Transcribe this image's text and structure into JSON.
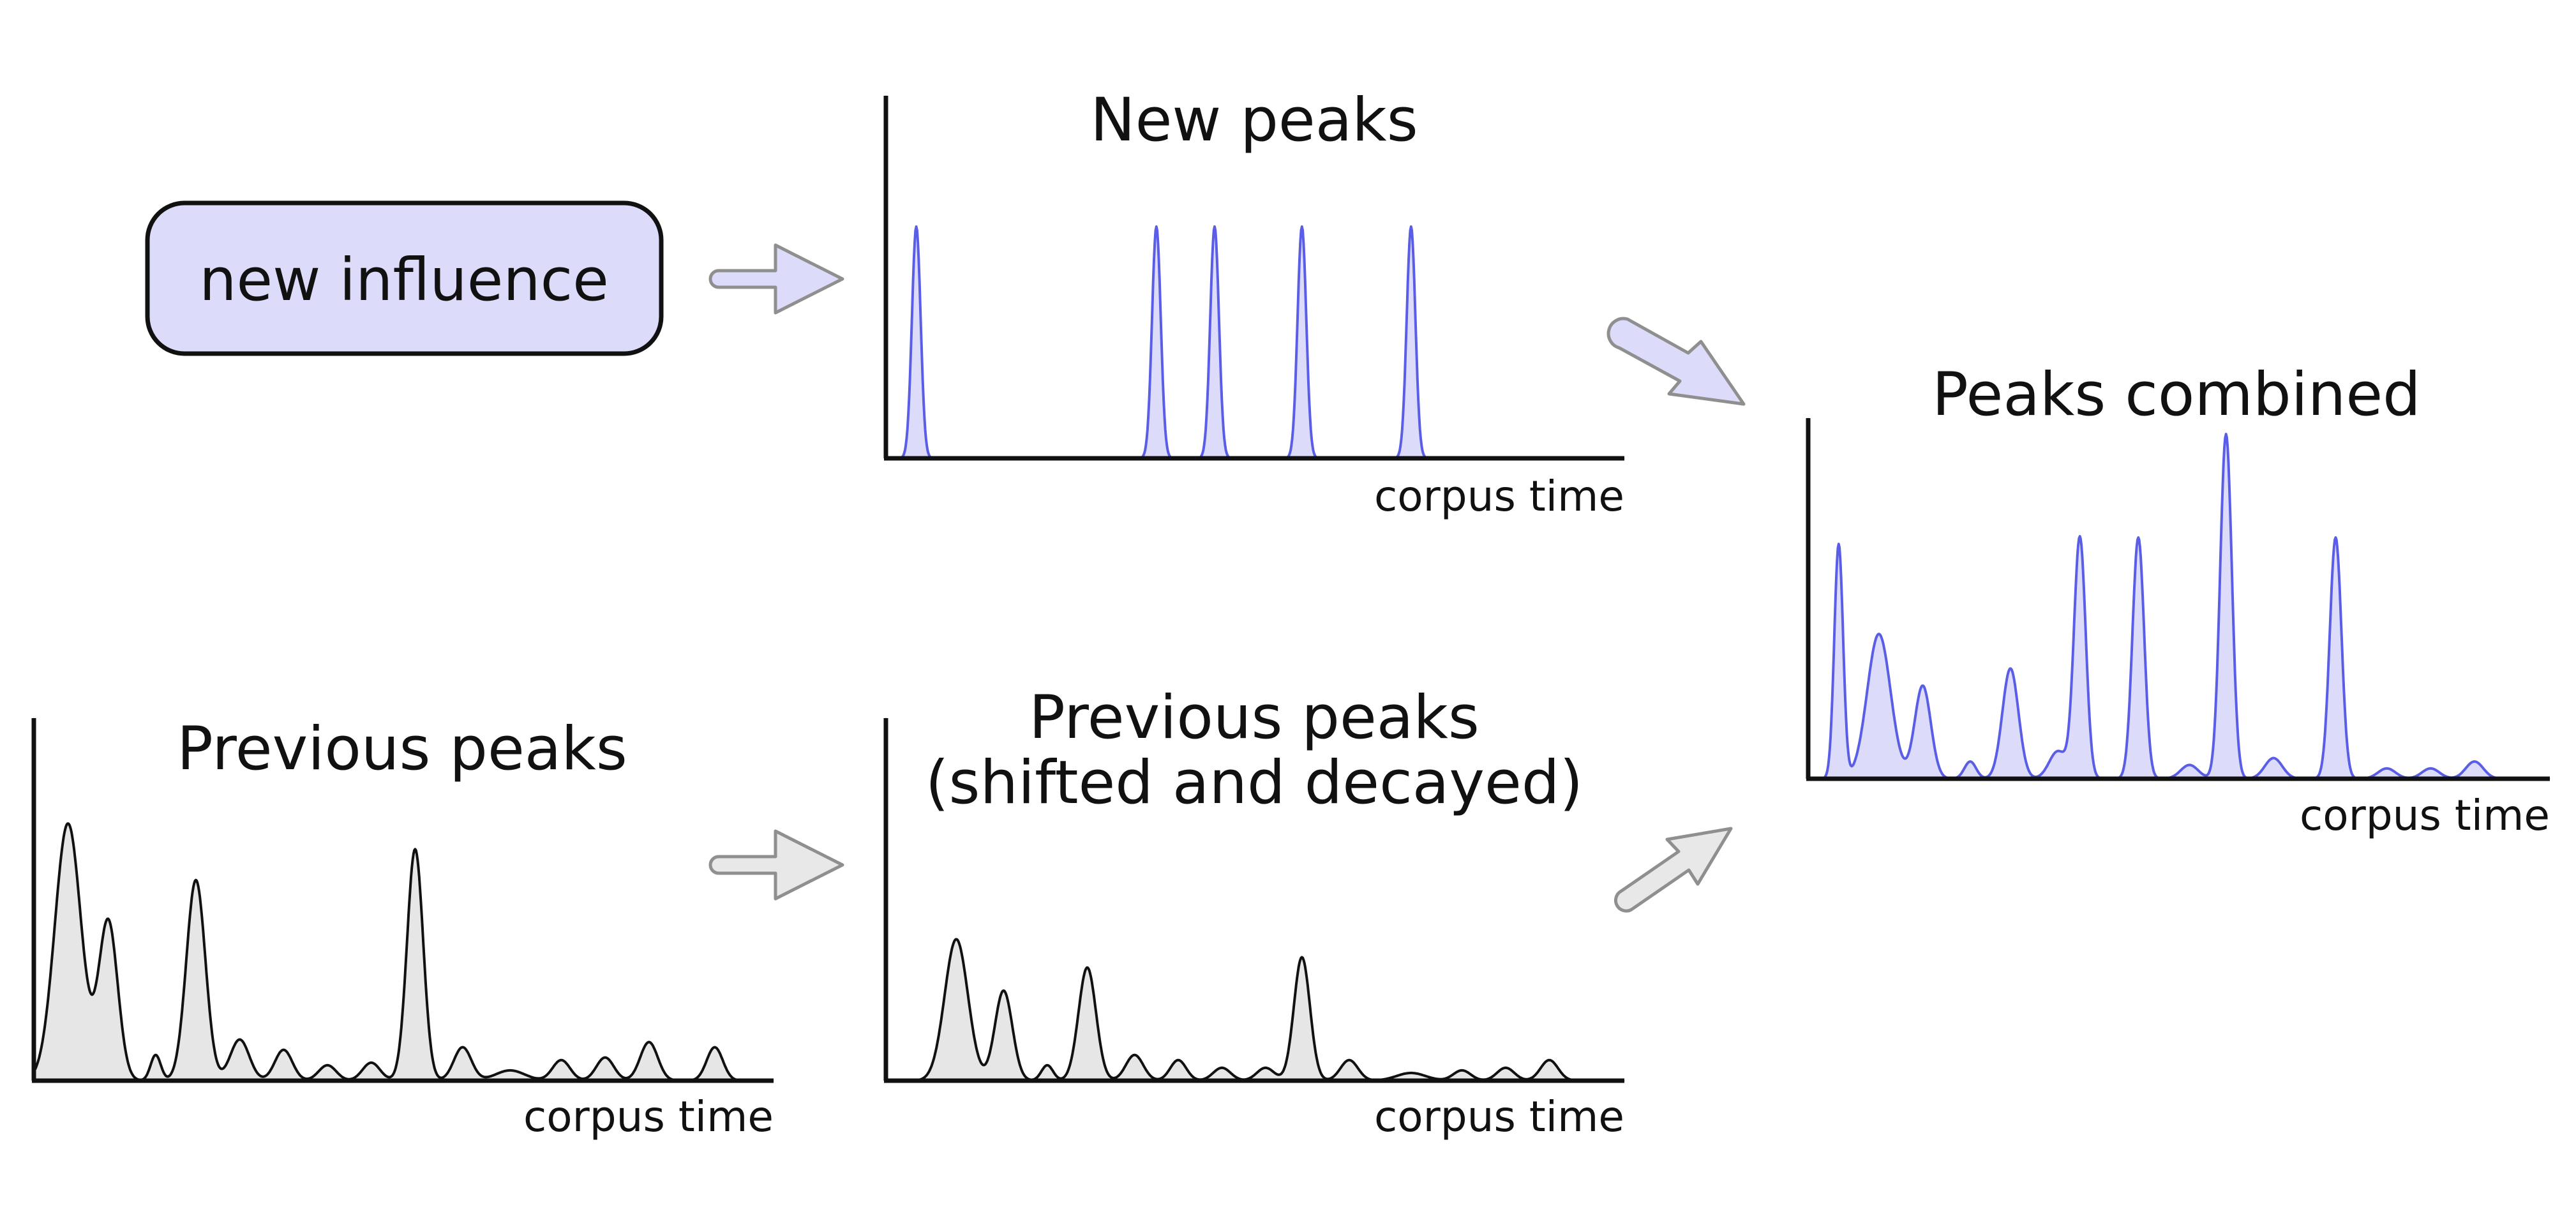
{
  "colors": {
    "blue_stroke": "#5a5ee6",
    "blue_fill": "#dcdcfa",
    "gray_stroke": "#111111",
    "gray_fill": "#e6e6e6",
    "arrow_gray_fill": "#e8e8e8",
    "arrow_blue_fill": "#dcdcfa",
    "arrow_stroke": "#8f8f8f"
  },
  "influence_box": {
    "label": "new influence"
  },
  "panels": {
    "new_peaks": {
      "title": "New peaks",
      "x_label": "corpus time"
    },
    "previous_peaks": {
      "title": "Previous peaks",
      "x_label": "corpus time"
    },
    "shifted": {
      "title_line1": "Previous peaks",
      "title_line2": "(shifted and decayed)",
      "x_label": "corpus time"
    },
    "combined": {
      "title": "Peaks combined",
      "x_label": "corpus time"
    }
  },
  "chart_data": [
    {
      "type": "area",
      "title": "New peaks",
      "xlabel": "corpus time",
      "x_range": [
        0,
        1
      ],
      "y_range": [
        0,
        1
      ],
      "peaks": [
        {
          "x": 0.04,
          "height": 1.0,
          "width": 0.006
        },
        {
          "x": 0.37,
          "height": 1.0,
          "width": 0.006
        },
        {
          "x": 0.45,
          "height": 1.0,
          "width": 0.006
        },
        {
          "x": 0.57,
          "height": 1.0,
          "width": 0.006
        },
        {
          "x": 0.72,
          "height": 1.0,
          "width": 0.006
        }
      ]
    },
    {
      "type": "area",
      "title": "Previous peaks",
      "xlabel": "corpus time",
      "x_range": [
        0,
        1
      ],
      "y_range": [
        0,
        1
      ],
      "peaks": [
        {
          "x": 0.045,
          "height": 1.0,
          "width": 0.018
        },
        {
          "x": 0.1,
          "height": 0.62,
          "width": 0.013
        },
        {
          "x": 0.165,
          "height": 0.1,
          "width": 0.007
        },
        {
          "x": 0.22,
          "height": 0.78,
          "width": 0.013
        },
        {
          "x": 0.28,
          "height": 0.16,
          "width": 0.013
        },
        {
          "x": 0.34,
          "height": 0.12,
          "width": 0.012
        },
        {
          "x": 0.4,
          "height": 0.06,
          "width": 0.012
        },
        {
          "x": 0.46,
          "height": 0.07,
          "width": 0.012
        },
        {
          "x": 0.52,
          "height": 0.9,
          "width": 0.011
        },
        {
          "x": 0.585,
          "height": 0.13,
          "width": 0.012
        },
        {
          "x": 0.65,
          "height": 0.04,
          "width": 0.02
        },
        {
          "x": 0.72,
          "height": 0.08,
          "width": 0.012
        },
        {
          "x": 0.78,
          "height": 0.09,
          "width": 0.012
        },
        {
          "x": 0.84,
          "height": 0.15,
          "width": 0.012
        },
        {
          "x": 0.93,
          "height": 0.13,
          "width": 0.011
        }
      ]
    },
    {
      "type": "area",
      "title": "Previous peaks (shifted and decayed)",
      "xlabel": "corpus time",
      "x_range": [
        0,
        1
      ],
      "y_range": [
        0,
        1
      ],
      "peaks": [
        {
          "x": 0.095,
          "height": 0.55,
          "width": 0.016
        },
        {
          "x": 0.16,
          "height": 0.35,
          "width": 0.012
        },
        {
          "x": 0.22,
          "height": 0.06,
          "width": 0.008
        },
        {
          "x": 0.275,
          "height": 0.44,
          "width": 0.012
        },
        {
          "x": 0.34,
          "height": 0.1,
          "width": 0.012
        },
        {
          "x": 0.4,
          "height": 0.08,
          "width": 0.011
        },
        {
          "x": 0.46,
          "height": 0.05,
          "width": 0.012
        },
        {
          "x": 0.52,
          "height": 0.05,
          "width": 0.012
        },
        {
          "x": 0.57,
          "height": 0.48,
          "width": 0.011
        },
        {
          "x": 0.635,
          "height": 0.08,
          "width": 0.012
        },
        {
          "x": 0.72,
          "height": 0.03,
          "width": 0.02
        },
        {
          "x": 0.79,
          "height": 0.04,
          "width": 0.012
        },
        {
          "x": 0.85,
          "height": 0.05,
          "width": 0.012
        },
        {
          "x": 0.91,
          "height": 0.08,
          "width": 0.012
        }
      ]
    },
    {
      "type": "area",
      "title": "Peaks combined",
      "xlabel": "corpus time",
      "x_range": [
        0,
        1
      ],
      "y_range": [
        0,
        1
      ],
      "peaks": [
        {
          "x": 0.04,
          "height": 0.68,
          "width": 0.006
        },
        {
          "x": 0.095,
          "height": 0.42,
          "width": 0.016
        },
        {
          "x": 0.155,
          "height": 0.27,
          "width": 0.011
        },
        {
          "x": 0.22,
          "height": 0.05,
          "width": 0.008
        },
        {
          "x": 0.275,
          "height": 0.32,
          "width": 0.011
        },
        {
          "x": 0.34,
          "height": 0.08,
          "width": 0.012
        },
        {
          "x": 0.37,
          "height": 0.7,
          "width": 0.008
        },
        {
          "x": 0.45,
          "height": 0.7,
          "width": 0.008
        },
        {
          "x": 0.52,
          "height": 0.04,
          "width": 0.012
        },
        {
          "x": 0.57,
          "height": 1.0,
          "width": 0.008
        },
        {
          "x": 0.635,
          "height": 0.06,
          "width": 0.012
        },
        {
          "x": 0.72,
          "height": 0.7,
          "width": 0.008
        },
        {
          "x": 0.79,
          "height": 0.03,
          "width": 0.012
        },
        {
          "x": 0.85,
          "height": 0.03,
          "width": 0.012
        },
        {
          "x": 0.91,
          "height": 0.05,
          "width": 0.012
        }
      ]
    }
  ]
}
